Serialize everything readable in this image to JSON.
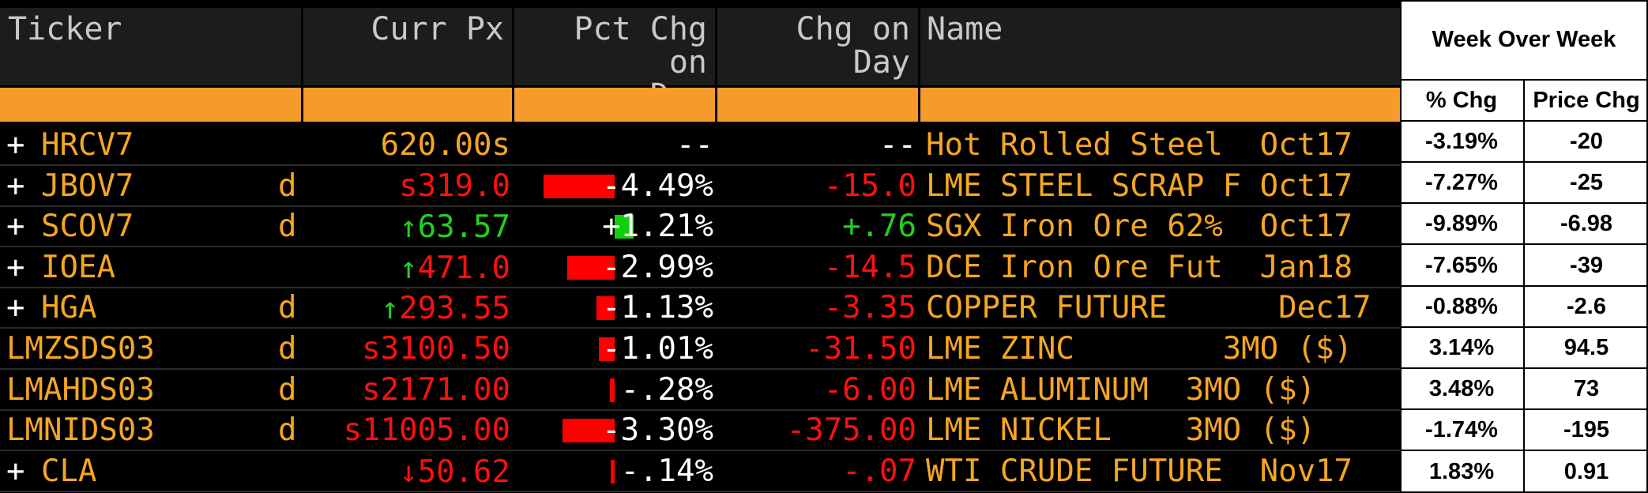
{
  "headers": {
    "ticker": "Ticker",
    "curr_px": "Curr Px",
    "pct_chg_line1": "Pct Chg on",
    "pct_chg_line2": "Day",
    "chg_on_day": "Chg on Day",
    "name": "Name"
  },
  "week_over_week": {
    "title": "Week Over Week",
    "pct_header": "% Chg",
    "price_header": "Price Chg"
  },
  "colors": {
    "background": "#000000",
    "header_bg": "#1c1c1c",
    "accent_orange": "#f79a2c",
    "ticker_orange": "#f5a623",
    "negative_red": "#ff1010",
    "positive_green": "#22d022"
  },
  "rows": [
    {
      "prefix": "+",
      "ticker": "HRCV7",
      "flag": "",
      "arrow": "",
      "px": "620.00s",
      "px_color": "orange",
      "pct": "--",
      "pct_value": 0,
      "chg": "--",
      "chg_color": "white",
      "name": "Hot Rolled Steel  Oct17",
      "wow_pct": "-3.19%",
      "wow_price": "-20"
    },
    {
      "prefix": "+",
      "ticker": "JBOV7",
      "flag": "d",
      "arrow": "",
      "px": "s319.0",
      "px_color": "red",
      "pct": "-4.49%",
      "pct_value": -4.49,
      "chg": "-15.0",
      "chg_color": "red",
      "name": "LME STEEL SCRAP F Oct17",
      "wow_pct": "-7.27%",
      "wow_price": "-25"
    },
    {
      "prefix": "+",
      "ticker": "SCOV7",
      "flag": "d",
      "arrow": "up",
      "px": "63.57",
      "px_color": "green",
      "pct": "+1.21%",
      "pct_value": 1.21,
      "chg": "+.76",
      "chg_color": "green",
      "name": "SGX Iron Ore 62%  Oct17",
      "wow_pct": "-9.89%",
      "wow_price": "-6.98"
    },
    {
      "prefix": "+",
      "ticker": "IOEA",
      "flag": "",
      "arrow": "up",
      "px": "471.0",
      "px_color": "red",
      "pct": "-2.99%",
      "pct_value": -2.99,
      "chg": "-14.5",
      "chg_color": "red",
      "name": "DCE Iron Ore Fut  Jan18",
      "wow_pct": "-7.65%",
      "wow_price": "-39"
    },
    {
      "prefix": "+",
      "ticker": "HGA",
      "flag": "d",
      "arrow": "up",
      "px": "293.55",
      "px_color": "red",
      "pct": "-1.13%",
      "pct_value": -1.13,
      "chg": "-3.35",
      "chg_color": "red",
      "name": "COPPER FUTURE      Dec17",
      "wow_pct": "-0.88%",
      "wow_price": "-2.6"
    },
    {
      "prefix": "",
      "ticker": "LMZSDS03",
      "flag": "d",
      "arrow": "",
      "px": "s3100.50",
      "px_color": "red",
      "pct": "-1.01%",
      "pct_value": -1.01,
      "chg": "-31.50",
      "chg_color": "red",
      "name": "LME ZINC        3MO ($)",
      "wow_pct": "3.14%",
      "wow_price": "94.5"
    },
    {
      "prefix": "",
      "ticker": "LMAHDS03",
      "flag": "d",
      "arrow": "",
      "px": "s2171.00",
      "px_color": "red",
      "pct": "-.28%",
      "pct_value": -0.28,
      "chg": "-6.00",
      "chg_color": "red",
      "name": "LME ALUMINUM  3MO ($)",
      "wow_pct": "3.48%",
      "wow_price": "73"
    },
    {
      "prefix": "",
      "ticker": "LMNIDS03",
      "flag": "d",
      "arrow": "",
      "px": "s11005.00",
      "px_color": "red",
      "pct": "-3.30%",
      "pct_value": -3.3,
      "chg": "-375.00",
      "chg_color": "red",
      "name": "LME NICKEL    3MO ($)",
      "wow_pct": "-1.74%",
      "wow_price": "-195"
    },
    {
      "prefix": "+",
      "ticker": "CLA",
      "flag": "",
      "arrow": "down",
      "px": "50.62",
      "px_color": "red",
      "pct": "-.14%",
      "pct_value": -0.14,
      "chg": "-.07",
      "chg_color": "red",
      "name": "WTI CRUDE FUTURE  Nov17",
      "wow_pct": "1.83%",
      "wow_price": "0.91"
    }
  ]
}
